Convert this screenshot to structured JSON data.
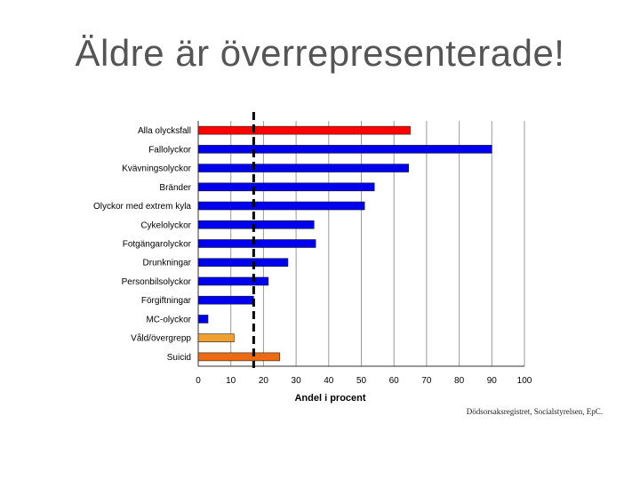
{
  "slide": {
    "title": "Äldre är överrepresenterade!",
    "source": "Dödsorsaksregistret, Socialstyrelsen, EpC."
  },
  "chart_data": {
    "type": "bar",
    "orientation": "horizontal",
    "title": "",
    "xlabel": "Andel i procent",
    "ylabel": "",
    "xlim": [
      0,
      100
    ],
    "xticks": [
      0,
      10,
      20,
      30,
      40,
      50,
      60,
      70,
      80,
      90,
      100
    ],
    "grid": "vertical",
    "reference_line": {
      "x": 17,
      "style": "dashed"
    },
    "categories": [
      "Alla olycksfall",
      "Fallolyckor",
      "Kvävningsolyckor",
      "Bränder",
      "Olyckor med extrem kyla",
      "Cykelolyckor",
      "Fotgängarolyckor",
      "Drunkningar",
      "Personbilsolyckor",
      "Förgiftningar",
      "MC-olyckor",
      "Våld/övergrepp",
      "Suicid"
    ],
    "values": [
      65,
      90,
      64.5,
      54,
      51,
      35.5,
      36,
      27.5,
      21.5,
      17,
      3,
      11,
      25
    ],
    "colors": [
      "#ff0000",
      "#0000ee",
      "#0000ee",
      "#0000ee",
      "#0000ee",
      "#0000ee",
      "#0000ee",
      "#0000ee",
      "#0000ee",
      "#0000ee",
      "#0000ee",
      "#f0a030",
      "#ee6a10"
    ]
  }
}
